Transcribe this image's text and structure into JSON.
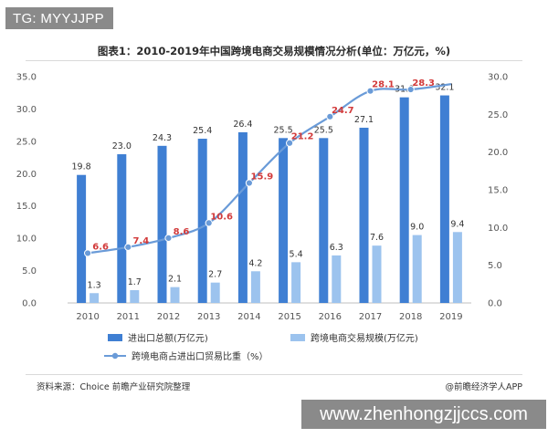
{
  "header": {
    "tag": "TG: MYYJJPP",
    "title": "图表1：2010-2019年中国跨境电商交易规模情况分析(单位：万亿元，%)"
  },
  "footer": {
    "source": "资料来源：Choice 前瞻产业研究院整理",
    "credit": "@前瞻经济学人APP",
    "site": "www.zhenhongzjjccs.com"
  },
  "chart_data": {
    "type": "bar",
    "categories": [
      "2010",
      "2011",
      "2012",
      "2013",
      "2014",
      "2015",
      "2016",
      "2017",
      "2018",
      "2019"
    ],
    "series": [
      {
        "name": "进出口总额(万亿元)",
        "type": "bar",
        "axis": "left",
        "color": "#3f7fd3",
        "values": [
          19.8,
          23.0,
          24.3,
          25.4,
          26.4,
          25.5,
          25.5,
          27.1,
          31.8,
          32.1
        ],
        "labels": [
          "19.8",
          "23.0",
          "24.3",
          "25.4",
          "26.4",
          "25.5",
          "25.5",
          "27.1",
          "31.8",
          "32.1"
        ]
      },
      {
        "name": "跨境电商交易规模(万亿元)",
        "type": "bar",
        "axis": "right",
        "color": "#9cc3ee",
        "values": [
          1.3,
          1.7,
          2.1,
          2.7,
          4.2,
          5.4,
          6.3,
          7.6,
          9.0,
          9.4
        ],
        "labels": [
          "1.3",
          "1.7",
          "2.1",
          "2.7",
          "4.2",
          "5.4",
          "6.3",
          "7.6",
          "9.0",
          "9.4"
        ]
      },
      {
        "name": "跨境电商占进出口贸易比重（%）",
        "type": "line",
        "axis": "right",
        "color": "#6a9bd8",
        "values": [
          6.6,
          7.4,
          8.6,
          10.6,
          15.9,
          21.2,
          24.7,
          28.1,
          28.3,
          29.0
        ],
        "labels": [
          "6.6",
          "7.4",
          "8.6",
          "10.6",
          "15.9",
          "21.2",
          "24.7",
          "28.1",
          "28.3",
          ""
        ]
      }
    ],
    "left_axis": {
      "min": 0,
      "max": 35,
      "ticks": [
        "0.0",
        "5.0",
        "10.0",
        "15.0",
        "20.0",
        "25.0",
        "30.0",
        "35.0"
      ]
    },
    "right_axis": {
      "min": 0,
      "max": 30,
      "ticks": [
        "0.0",
        "5.0",
        "10.0",
        "15.0",
        "20.0",
        "25.0",
        "30.0"
      ]
    },
    "grid": false,
    "legend_position": "bottom"
  }
}
